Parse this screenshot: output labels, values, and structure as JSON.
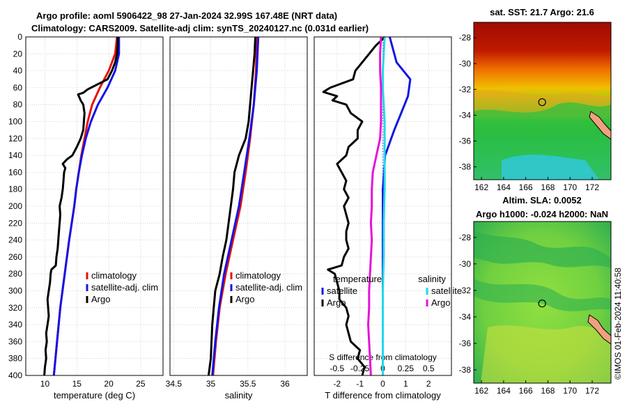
{
  "header": {
    "title_line1": "Argo profile: aoml 5906422_98 27-Jan-2024 32.99S 167.48E (NRT data)",
    "title_line2": "Climatology: CARS2009. Satellite-adj clim: synTS_20240127.nc (0.031d earlier)"
  },
  "credit": "©IMOS 01-Feb-2024 11:40:58",
  "colors": {
    "climatology": "#e8100c",
    "satellite": "#1414e6",
    "argo": "#000000",
    "salinity_sat": "#22d8e8",
    "salinity_argo": "#e810d8"
  },
  "chart_data": [
    {
      "type": "line",
      "title": "",
      "xlabel": "temperature (deg C)",
      "ylabel": "",
      "xlim": [
        7,
        28.5
      ],
      "ylim": [
        400,
        0
      ],
      "xticks": [
        "10",
        "15",
        "20",
        "25"
      ],
      "xtick_values": [
        10,
        15,
        20,
        25
      ],
      "yticks": [
        "0",
        "20",
        "40",
        "60",
        "80",
        "100",
        "120",
        "140",
        "160",
        "180",
        "200",
        "220",
        "240",
        "260",
        "280",
        "300",
        "320",
        "340",
        "360",
        "380",
        "400"
      ],
      "grid": true,
      "legend": [
        "climatology",
        "satellite-adj. clim",
        "Argo"
      ],
      "legend_position": "lower-right",
      "series": [
        {
          "name": "climatology",
          "color": "#e8100c",
          "depth": [
            0,
            20,
            40,
            60,
            80,
            100,
            120,
            140,
            160,
            180,
            200,
            240,
            280,
            320,
            360,
            400
          ],
          "values": [
            21.3,
            21.0,
            20.0,
            18.6,
            17.4,
            16.7,
            16.2,
            15.7,
            15.3,
            14.9,
            14.6,
            13.8,
            13.1,
            12.4,
            11.9,
            11.4
          ]
        },
        {
          "name": "satellite-adj. clim",
          "color": "#1414e6",
          "depth": [
            0,
            20,
            40,
            60,
            80,
            100,
            120,
            140,
            160,
            180,
            200,
            240,
            280,
            320,
            360,
            400
          ],
          "values": [
            21.6,
            21.6,
            21.0,
            19.8,
            18.3,
            17.2,
            16.4,
            15.8,
            15.3,
            14.9,
            14.6,
            13.8,
            13.1,
            12.4,
            11.9,
            11.4
          ]
        },
        {
          "name": "Argo",
          "color": "#000000",
          "depth": [
            0,
            10,
            20,
            30,
            40,
            50,
            62,
            66,
            68,
            75,
            80,
            90,
            100,
            110,
            120,
            130,
            140,
            145,
            150,
            155,
            160,
            170,
            180,
            190,
            200,
            210,
            220,
            230,
            240,
            250,
            260,
            270,
            275,
            280,
            290,
            300,
            310,
            320,
            330,
            340,
            350,
            360,
            370,
            380,
            390,
            400
          ],
          "values": [
            21.4,
            21.4,
            21.3,
            21.0,
            20.5,
            19.8,
            16.7,
            16.0,
            15.2,
            15.6,
            16.0,
            16.2,
            16.1,
            16.0,
            15.6,
            15.0,
            14.3,
            13.4,
            12.8,
            13.2,
            13.0,
            12.9,
            12.8,
            12.6,
            12.3,
            12.4,
            12.3,
            12.2,
            12.1,
            12.0,
            11.8,
            11.7,
            11.0,
            10.9,
            10.8,
            10.6,
            10.4,
            10.5,
            10.6,
            10.4,
            10.2,
            10.3,
            10.1,
            10.2,
            10.0,
            9.9
          ]
        }
      ]
    },
    {
      "type": "line",
      "title": "",
      "xlabel": "salinity",
      "ylabel": "",
      "xlim": [
        34.45,
        36.3
      ],
      "ylim": [
        400,
        0
      ],
      "xticks": [
        "34.5",
        "35",
        "35.5",
        "36"
      ],
      "xtick_values": [
        34.5,
        35,
        35.5,
        36
      ],
      "grid": true,
      "legend": [
        "climatology",
        "satellite-adj. clim",
        "Argo"
      ],
      "legend_position": "lower-right",
      "series": [
        {
          "name": "climatology",
          "color": "#e8100c",
          "depth": [
            0,
            40,
            80,
            120,
            160,
            200,
            240,
            280,
            320,
            360,
            400
          ],
          "values": [
            35.62,
            35.61,
            35.58,
            35.53,
            35.47,
            35.4,
            35.3,
            35.2,
            35.12,
            35.07,
            35.03
          ]
        },
        {
          "name": "satellite-adj. clim",
          "color": "#1414e6",
          "depth": [
            0,
            40,
            80,
            120,
            160,
            200,
            240,
            280,
            320,
            360,
            400
          ],
          "values": [
            35.64,
            35.62,
            35.58,
            35.52,
            35.45,
            35.38,
            35.28,
            35.18,
            35.11,
            35.06,
            35.02
          ]
        },
        {
          "name": "Argo",
          "color": "#000000",
          "depth": [
            0,
            20,
            40,
            60,
            80,
            100,
            120,
            140,
            160,
            180,
            200,
            220,
            240,
            260,
            280,
            300,
            320,
            340,
            360,
            380,
            400
          ],
          "values": [
            35.6,
            35.59,
            35.57,
            35.55,
            35.53,
            35.51,
            35.47,
            35.38,
            35.32,
            35.3,
            35.27,
            35.24,
            35.21,
            35.16,
            35.12,
            35.06,
            35.04,
            35.02,
            35.01,
            35.0,
            34.97
          ]
        }
      ]
    },
    {
      "type": "line",
      "title": "",
      "xlabel": "T difference from climatology",
      "xlabel_top": "S difference from climatology",
      "xlim": [
        -3,
        3
      ],
      "ylim": [
        400,
        0
      ],
      "xticks": [
        "-2",
        "-1",
        "0",
        "1",
        "2"
      ],
      "xtick_values": [
        -2,
        -1,
        0,
        1,
        2
      ],
      "xticks_top": [
        "-0.5",
        "-0.25",
        "0",
        "0.25",
        "0.5"
      ],
      "xtick_top_values": [
        -0.5,
        -0.25,
        0,
        0.25,
        0.5
      ],
      "grid": true,
      "legend": [
        "temperature",
        "satellite",
        "Argo",
        "salinity",
        "satellite",
        "Argo"
      ],
      "legend_position": "lower-center",
      "series": [
        {
          "name": "temperature satellite",
          "color": "#1414e6",
          "depth": [
            0,
            30,
            50,
            70,
            90,
            110,
            140,
            180,
            220,
            260,
            300,
            340,
            380,
            400
          ],
          "values": [
            0.3,
            0.6,
            1.2,
            1.1,
            0.8,
            0.5,
            0.1,
            0,
            0,
            0,
            0,
            0,
            0,
            0
          ]
        },
        {
          "name": "temperature Argo",
          "color": "#000000",
          "depth": [
            0,
            10,
            20,
            30,
            40,
            50,
            60,
            65,
            70,
            75,
            80,
            90,
            100,
            110,
            120,
            130,
            140,
            150,
            160,
            170,
            180,
            190,
            200,
            210,
            220,
            230,
            240,
            250,
            260,
            270,
            275,
            280,
            290,
            300,
            310,
            320,
            330,
            340,
            350,
            360,
            370,
            380,
            390,
            400
          ],
          "values": [
            0.1,
            -0.3,
            -0.6,
            -0.9,
            -1.2,
            -1.3,
            -2.3,
            -2.6,
            -2.0,
            -2.2,
            -1.6,
            -1.4,
            -0.9,
            -1.1,
            -1.1,
            -1.5,
            -1.6,
            -2.0,
            -1.8,
            -1.6,
            -1.7,
            -1.5,
            -1.7,
            -1.6,
            -1.5,
            -1.6,
            -1.6,
            -1.5,
            -1.7,
            -1.8,
            -2.4,
            -2.1,
            -2.0,
            -1.9,
            -1.9,
            -1.6,
            -1.5,
            -1.6,
            -1.5,
            -1.4,
            -1.0,
            -1.1,
            -0.8,
            -0.9
          ]
        },
        {
          "name": "salinity satellite",
          "color": "#22d8e8",
          "depth": [
            0,
            20,
            40,
            60,
            80,
            100,
            140,
            180,
            220,
            260,
            300,
            340,
            380,
            400
          ],
          "values": [
            0.02,
            0.01,
            0.0,
            0.0,
            0.01,
            0.02,
            0.02,
            0.02,
            0.01,
            0.01,
            0.0,
            0.0,
            0.0,
            0.0
          ]
        },
        {
          "name": "salinity Argo",
          "color": "#e810d8",
          "depth": [
            0,
            20,
            40,
            60,
            80,
            100,
            120,
            140,
            160,
            180,
            200,
            220,
            240,
            260,
            280,
            300,
            320,
            340,
            360,
            380,
            400
          ],
          "values": [
            -0.02,
            -0.03,
            -0.03,
            -0.02,
            -0.02,
            -0.02,
            -0.03,
            -0.07,
            -0.11,
            -0.12,
            -0.12,
            -0.13,
            -0.12,
            -0.13,
            -0.14,
            -0.15,
            -0.15,
            -0.16,
            -0.15,
            -0.14,
            -0.13
          ]
        }
      ]
    }
  ],
  "maps": [
    {
      "title": "sat. SST: 21.7 Argo: 21.6",
      "xticks": [
        "162",
        "164",
        "166",
        "168",
        "170",
        "172"
      ],
      "xtick_values": [
        162,
        164,
        166,
        168,
        170,
        172
      ],
      "yticks": [
        "-28",
        "-30",
        "-32",
        "-34",
        "-36",
        "-38"
      ],
      "ytick_values": [
        -28,
        -30,
        -32,
        -34,
        -36,
        -38
      ],
      "xlim": [
        161.3,
        173.7
      ],
      "ylim": [
        -39,
        -26.8
      ],
      "marker": [
        167.48,
        -32.99
      ]
    },
    {
      "title": "Altim. SLA: 0.0052",
      "subtitle": "Argo h1000: -0.024 h2000: NaN",
      "xticks": [
        "162",
        "164",
        "166",
        "168",
        "170",
        "172"
      ],
      "xtick_values": [
        162,
        164,
        166,
        168,
        170,
        172
      ],
      "yticks": [
        "-28",
        "-30",
        "-32",
        "-34",
        "-36",
        "-38"
      ],
      "ytick_values": [
        -28,
        -30,
        -32,
        -34,
        -36,
        -38
      ],
      "xlim": [
        161.3,
        173.7
      ],
      "ylim": [
        -39,
        -26.8
      ],
      "marker": [
        167.48,
        -32.99
      ]
    }
  ]
}
